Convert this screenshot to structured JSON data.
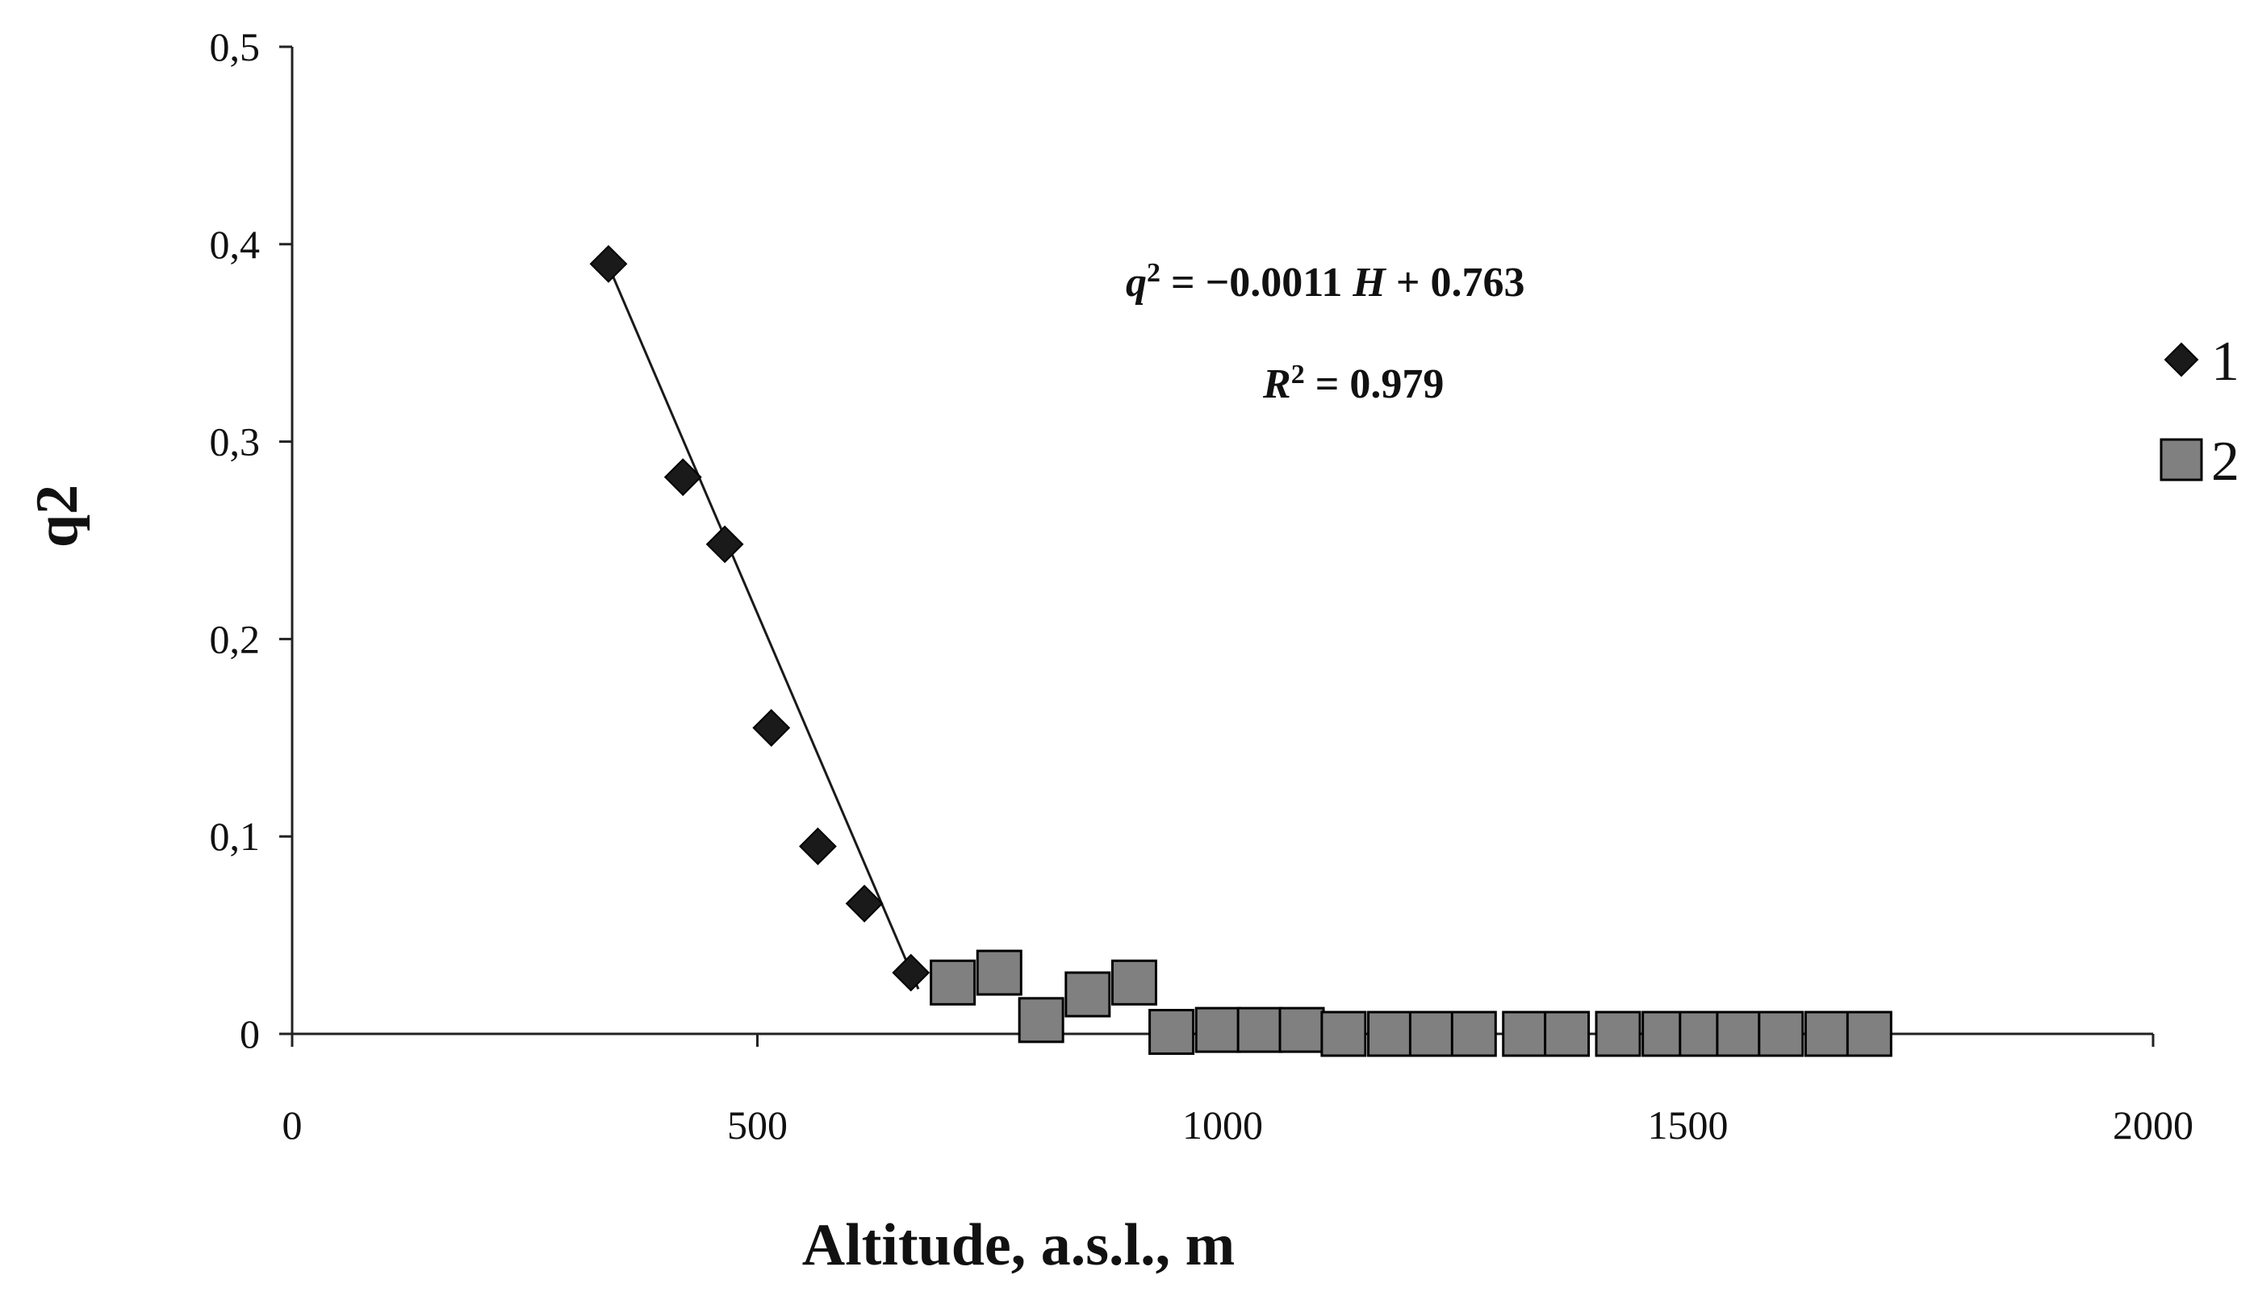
{
  "chart_data": {
    "type": "scatter",
    "xlabel": "Altitude, a.s.l., m",
    "ylabel": "q2",
    "xlim": [
      0,
      2000
    ],
    "ylim": [
      0,
      0.5
    ],
    "x_ticks": [
      0,
      500,
      1000,
      1500,
      2000
    ],
    "x_tick_labels": [
      "0",
      "500",
      "1000",
      "1500",
      "2000"
    ],
    "y_ticks": [
      0,
      0.1,
      0.2,
      0.3,
      0.4,
      0.5
    ],
    "y_tick_labels": [
      "0",
      "0,1",
      "0,2",
      "0,3",
      "0,4",
      "0,5"
    ],
    "grid": false,
    "legend_position": "right",
    "series": [
      {
        "name": "1",
        "marker": "diamond",
        "color": "#1a1a1a",
        "x": [
          340,
          420,
          465,
          515,
          565,
          615,
          665
        ],
        "y": [
          0.39,
          0.282,
          0.248,
          0.155,
          0.095,
          0.066,
          0.031
        ]
      },
      {
        "name": "2",
        "marker": "square",
        "color": "#808080",
        "x": [
          710,
          760,
          805,
          855,
          905,
          945,
          995,
          1040,
          1085,
          1130,
          1180,
          1225,
          1270,
          1325,
          1370,
          1425,
          1475,
          1515,
          1555,
          1600,
          1650,
          1695
        ],
        "y": [
          0.026,
          0.031,
          0.007,
          0.02,
          0.026,
          0.001,
          0.002,
          0.002,
          0.002,
          0.0,
          0.0,
          0.0,
          0.0,
          0.0,
          0.0,
          0.0,
          0.0,
          0.0,
          0.0,
          0.0,
          0.0,
          0.0
        ]
      }
    ],
    "trendline": {
      "series": "1",
      "slope": -0.0011,
      "intercept": 0.763,
      "x_range": [
        345,
        673
      ],
      "color": "#1a1a1a"
    },
    "annotations": {
      "equation": {
        "lhs_var": "q",
        "lhs_sup": "2",
        "mid": " = −0.0011 ",
        "var": "H",
        "rhs": " + 0.763"
      },
      "r2": {
        "var": "R",
        "sup": "2",
        "rhs": " = 0.979"
      }
    }
  }
}
